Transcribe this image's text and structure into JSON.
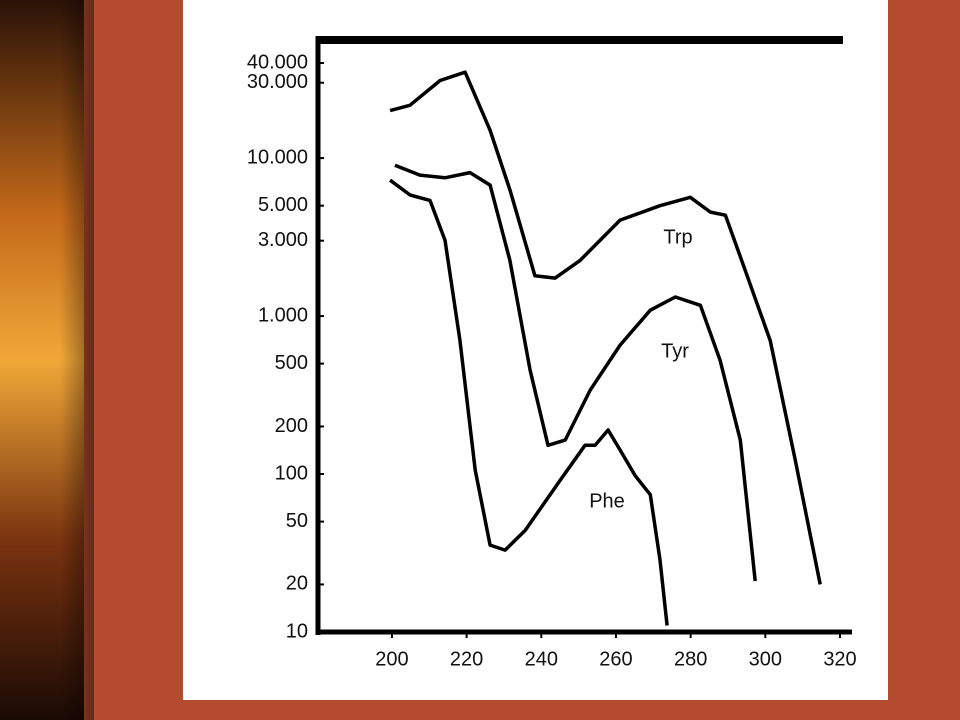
{
  "chart_data": {
    "type": "line",
    "log_y": true,
    "xlim": [
      181,
      320
    ],
    "xticks": [
      200,
      220,
      240,
      260,
      280,
      300,
      320
    ],
    "ylim": [
      10,
      40000
    ],
    "yticks": [
      {
        "value": 40000,
        "label": "40.000"
      },
      {
        "value": 30000,
        "label": "30.000"
      },
      {
        "value": 10000,
        "label": "10.000"
      },
      {
        "value": 5000,
        "label": "5.000"
      },
      {
        "value": 3000,
        "label": "3.000"
      },
      {
        "value": 1000,
        "label": "1.000"
      },
      500,
      200,
      100,
      50,
      20,
      10
    ],
    "series": [
      {
        "name": "Trp",
        "color": "#000000",
        "x": [
          199.5,
          204.8,
          212.9,
          219.6,
          226.3,
          231.6,
          238.3,
          243.7,
          250.4,
          261.1,
          271.8,
          279.9,
          285.3,
          289.3,
          294.6,
          301.3,
          308,
          314.7
        ],
        "values": [
          20000,
          21600,
          31000,
          35000,
          15000,
          6300,
          1800,
          1740,
          2250,
          4050,
          5000,
          5650,
          4550,
          4350,
          1950,
          700,
          123,
          20
        ]
      },
      {
        "name": "Tyr",
        "color": "#000000",
        "x": [
          200.8,
          207.5,
          214.2,
          220.9,
          226.3,
          231.6,
          237,
          241.8,
          246.4,
          253.1,
          261.1,
          269.2,
          275.9,
          282.6,
          287.9,
          293.3,
          297.3
        ],
        "values": [
          9000,
          7800,
          7500,
          8100,
          6750,
          2250,
          455,
          152,
          164,
          340,
          655,
          1090,
          1320,
          1170,
          525,
          164,
          21
        ]
      },
      {
        "name": "Phe",
        "color": "#000000",
        "x": [
          199.5,
          204.8,
          210.2,
          214.2,
          218.2,
          222.3,
          226.3,
          230.3,
          235.7,
          245,
          251.7,
          254.4,
          257.9,
          261.1,
          265.1,
          269.2,
          271.8,
          273.7
        ],
        "values": [
          7250,
          5850,
          5400,
          3020,
          705,
          106,
          35.5,
          33,
          44,
          91,
          152,
          152,
          190,
          142,
          98,
          74,
          28.6,
          11
        ]
      }
    ]
  }
}
